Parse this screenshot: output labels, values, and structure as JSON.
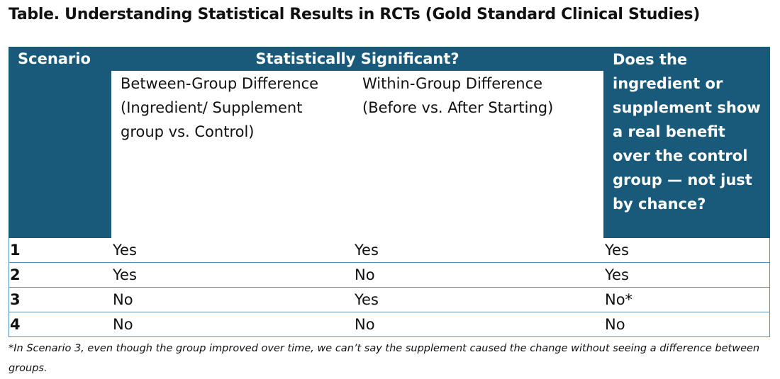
{
  "title": "Table. Understanding Statistical Results in RCTs (Gold Standard Clinical Studies)",
  "table": {
    "header": {
      "scenario": "Scenario",
      "significant": "Statistically Significant?",
      "between": "Between-Group Difference (Ingredient/ Supplement group vs. Control)",
      "within": "Within-Group Difference (Before vs. After Starting)",
      "benefit": "Does the ingredient or supplement show a real benefit over the control group — not just by chance?"
    },
    "rows": [
      [
        "1",
        "Yes",
        "Yes",
        "Yes"
      ],
      [
        "2",
        "Yes",
        "No",
        "Yes"
      ],
      [
        "3",
        "No",
        "Yes",
        "No*"
      ],
      [
        "4",
        "No",
        "No",
        "No"
      ]
    ]
  },
  "footnote": "*In Scenario 3, even though the group improved over time, we can’t say the supplement caused the change without seeing a difference between groups."
}
